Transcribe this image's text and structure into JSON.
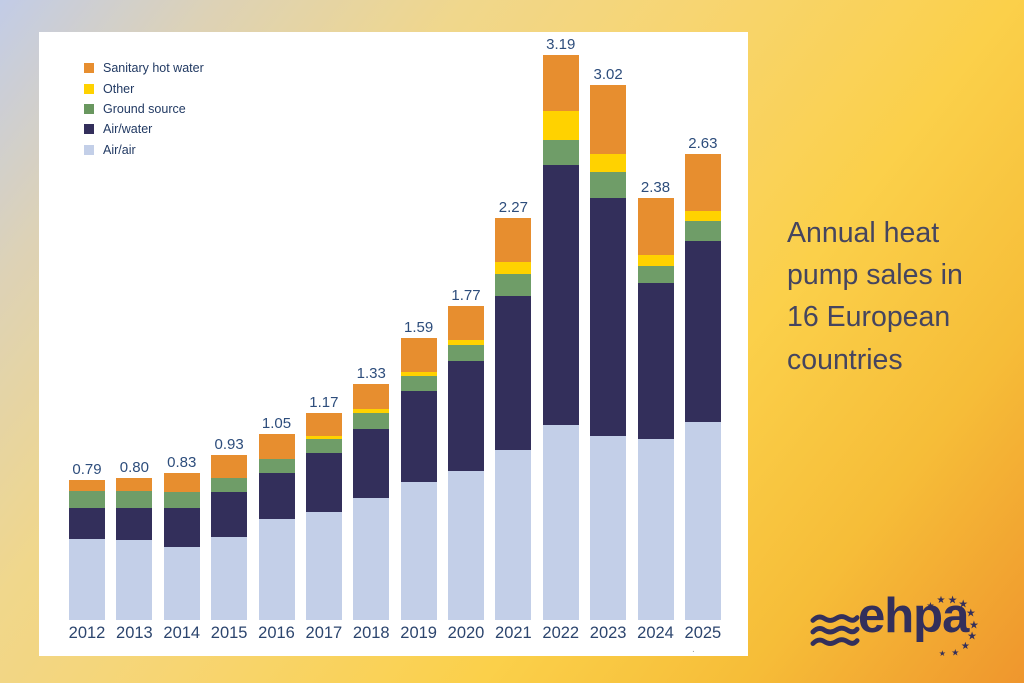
{
  "chart_data": {
    "type": "bar",
    "stacked": true,
    "categories": [
      "2012",
      "2013",
      "2014",
      "2015",
      "2016",
      "2017",
      "2018",
      "2019",
      "2020",
      "2021",
      "2022",
      "2023",
      "2024",
      "2025"
    ],
    "series": [
      {
        "name": "Air/air",
        "color": "#c3cfe8",
        "values": [
          0.46,
          0.45,
          0.41,
          0.47,
          0.57,
          0.61,
          0.69,
          0.78,
          0.84,
          0.96,
          1.1,
          1.04,
          1.02,
          1.12
        ]
      },
      {
        "name": "Air/water",
        "color": "#332f5b",
        "values": [
          0.17,
          0.18,
          0.22,
          0.25,
          0.26,
          0.33,
          0.39,
          0.51,
          0.62,
          0.87,
          1.47,
          1.34,
          0.88,
          1.02
        ]
      },
      {
        "name": "Ground source",
        "color": "#6f9d68",
        "values": [
          0.1,
          0.1,
          0.09,
          0.08,
          0.08,
          0.08,
          0.09,
          0.09,
          0.09,
          0.12,
          0.14,
          0.15,
          0.1,
          0.11
        ]
      },
      {
        "name": "Other",
        "color": "#ffd200",
        "values": [
          0.0,
          0.0,
          0.0,
          0.0,
          0.0,
          0.02,
          0.02,
          0.02,
          0.03,
          0.07,
          0.16,
          0.1,
          0.06,
          0.06
        ]
      },
      {
        "name": "Sanitary hot water",
        "color": "#e78e2f",
        "values": [
          0.06,
          0.07,
          0.11,
          0.13,
          0.14,
          0.13,
          0.14,
          0.19,
          0.19,
          0.25,
          0.32,
          0.39,
          0.32,
          0.32
        ]
      }
    ],
    "totals": [
      "0.79",
      "0.80",
      "0.83",
      "0.93",
      "1.05",
      "1.17",
      "1.33",
      "1.59",
      "1.77",
      "2.27",
      "3.19",
      "3.02",
      "2.38",
      "2.63"
    ],
    "legend": [
      {
        "label": "Sanitary hot water",
        "color": "#e78e2f"
      },
      {
        "label": "Other",
        "color": "#ffd200"
      },
      {
        "label": "Ground source",
        "color": "#69975f"
      },
      {
        "label": "Air/water",
        "color": "#332f5b"
      },
      {
        "label": "Air/air",
        "color": "#c3cfe8"
      }
    ],
    "ylim": [
      0,
      3.3
    ],
    "axes_visible": false,
    "grid": false,
    "legend_position": "top-left inside plot",
    "value_labels": "total above each bar"
  },
  "caption": {
    "text": "Annual heat pump sales in 16 European countries"
  },
  "footnote_mark": ".",
  "logo": {
    "text": "ehpa",
    "waves_icon": "three-wavy-lines",
    "stars_icon": "arc-of-eu-stars",
    "color": "#332f5b"
  },
  "colors": {
    "panel_background": "#ffffff",
    "background_top_left": "#c2cce7",
    "background_mid": "#f8d55e",
    "background_bottom_right": "#ef962d",
    "label_text": "#2d4d7c",
    "caption_text": "#45455f"
  }
}
